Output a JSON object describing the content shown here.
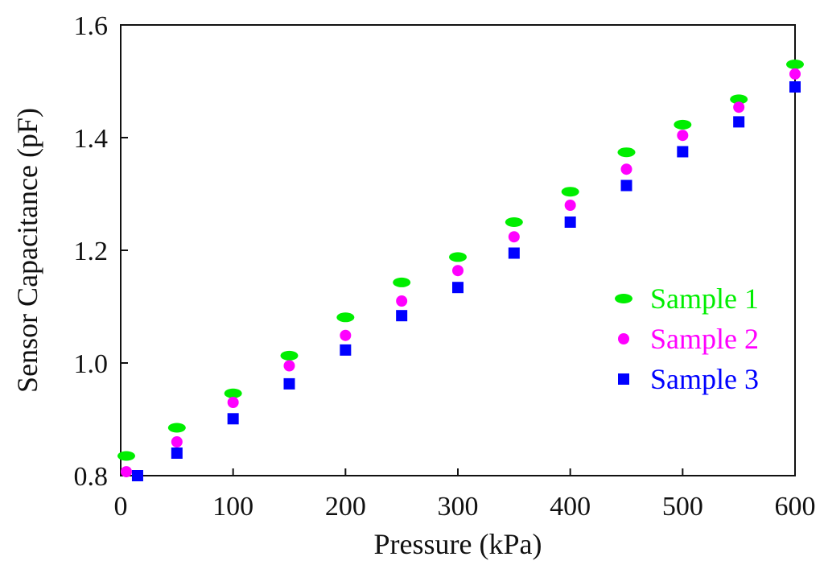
{
  "chart_data": {
    "type": "scatter",
    "title": "",
    "xlabel": "Pressure (kPa)",
    "ylabel": "Sensor Capacitance (pF)",
    "xlim": [
      0,
      600
    ],
    "ylim": [
      0.8,
      1.6
    ],
    "x_ticks": [
      {
        "value": 0,
        "label": "0"
      },
      {
        "value": 100,
        "label": "100"
      },
      {
        "value": 200,
        "label": "200"
      },
      {
        "value": 300,
        "label": "300"
      },
      {
        "value": 400,
        "label": "400"
      },
      {
        "value": 500,
        "label": "500"
      },
      {
        "value": 600,
        "label": "600"
      }
    ],
    "y_ticks": [
      {
        "value": 0.8,
        "label": "0.8"
      },
      {
        "value": 1.0,
        "label": "1.0"
      },
      {
        "value": 1.2,
        "label": "1.2"
      },
      {
        "value": 1.4,
        "label": "1.4"
      },
      {
        "value": 1.6,
        "label": "1.6"
      }
    ],
    "grid": false,
    "legend_position": "right",
    "series": [
      {
        "name": "Sample 1",
        "color": "#00ee00",
        "marker": "ellipse",
        "x": [
          5,
          50,
          100,
          150,
          200,
          250,
          300,
          350,
          400,
          450,
          500,
          550,
          600
        ],
        "y": [
          0.835,
          0.885,
          0.946,
          1.013,
          1.081,
          1.143,
          1.188,
          1.25,
          1.304,
          1.374,
          1.423,
          1.468,
          1.53
        ]
      },
      {
        "name": "Sample 2",
        "color": "#ff00ff",
        "marker": "circle",
        "x": [
          5,
          50,
          100,
          150,
          200,
          250,
          300,
          350,
          400,
          450,
          500,
          550,
          600
        ],
        "y": [
          0.807,
          0.86,
          0.93,
          0.995,
          1.049,
          1.11,
          1.164,
          1.224,
          1.28,
          1.344,
          1.404,
          1.454,
          1.513
        ]
      },
      {
        "name": "Sample 3",
        "color": "#0000ff",
        "marker": "square",
        "x": [
          15,
          50,
          100,
          150,
          200,
          250,
          300,
          350,
          400,
          450,
          500,
          550,
          600
        ],
        "y": [
          0.8,
          0.84,
          0.901,
          0.963,
          1.023,
          1.084,
          1.134,
          1.195,
          1.25,
          1.315,
          1.375,
          1.428,
          1.49
        ]
      }
    ]
  }
}
